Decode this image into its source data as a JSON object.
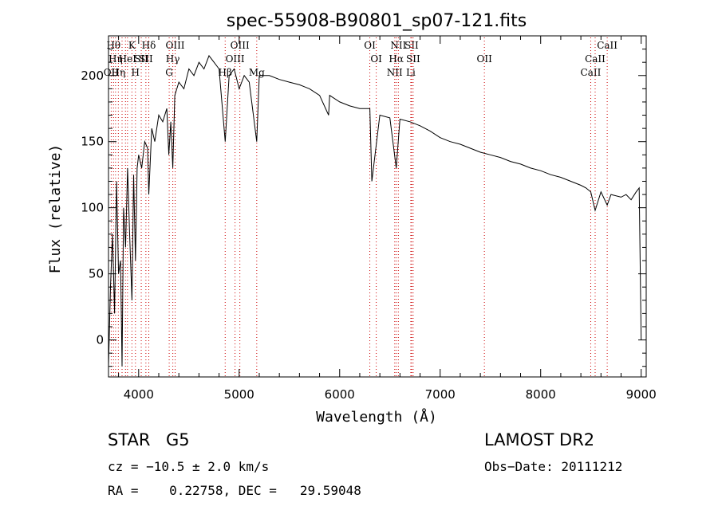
{
  "chart_data": {
    "type": "line",
    "title": "spec-55908-B90801_sp07-121.fits",
    "xlabel": "Wavelength (Å)",
    "ylabel": "Flux (relative)",
    "xlim": [
      3700,
      9050
    ],
    "ylim": [
      -28,
      230
    ],
    "xticks": [
      4000,
      5000,
      6000,
      7000,
      8000,
      9000
    ],
    "yticks": [
      0,
      50,
      100,
      150,
      200
    ],
    "grid": false,
    "line_color": "#000000",
    "marker_line_color": "#cc0000",
    "series": [
      {
        "x": [
          3700,
          3720,
          3740,
          3760,
          3780,
          3800,
          3820,
          3835,
          3850,
          3870,
          3890,
          3910,
          3933,
          3950,
          3968,
          3985,
          4000,
          4030,
          4060,
          4090,
          4101,
          4130,
          4160,
          4200,
          4240,
          4280,
          4300,
          4320,
          4340,
          4360,
          4400,
          4450,
          4500,
          4550,
          4600,
          4650,
          4700,
          4750,
          4800,
          4861,
          4900,
          4950,
          5000,
          5050,
          5100,
          5175,
          5200,
          5300,
          5400,
          5500,
          5600,
          5700,
          5800,
          5890,
          5900,
          6000,
          6100,
          6200,
          6300,
          6320,
          6400,
          6500,
          6563,
          6600,
          6700,
          6800,
          6900,
          7000,
          7100,
          7200,
          7300,
          7400,
          7500,
          7600,
          7700,
          7800,
          7900,
          8000,
          8100,
          8200,
          8300,
          8400,
          8450,
          8498,
          8542,
          8600,
          8662,
          8700,
          8800,
          8850,
          8900,
          8950,
          8980,
          9000
        ],
        "y": [
          -20,
          40,
          80,
          20,
          120,
          50,
          60,
          -20,
          100,
          70,
          130,
          80,
          30,
          125,
          60,
          130,
          140,
          130,
          150,
          145,
          110,
          160,
          150,
          170,
          165,
          175,
          140,
          165,
          130,
          185,
          195,
          190,
          205,
          200,
          210,
          205,
          215,
          210,
          205,
          150,
          200,
          205,
          190,
          200,
          195,
          150,
          200,
          200,
          197,
          195,
          193,
          190,
          185,
          170,
          185,
          180,
          177,
          175,
          175,
          120,
          170,
          168,
          130,
          167,
          165,
          162,
          158,
          153,
          150,
          148,
          145,
          142,
          140,
          138,
          135,
          133,
          130,
          128,
          125,
          123,
          120,
          117,
          115,
          112,
          98,
          112,
          102,
          110,
          108,
          110,
          106,
          112,
          115,
          0
        ]
      }
    ],
    "lines": [
      {
        "w": 3727,
        "row": 2,
        "label": "OII"
      },
      {
        "w": 3750,
        "row": 0,
        "label": "Hθ"
      },
      {
        "w": 3770,
        "row": 1,
        "label": "Hη"
      },
      {
        "w": 3798,
        "row": 2,
        "label": "Hη"
      },
      {
        "w": 3835,
        "row": 0,
        "label": ""
      },
      {
        "w": 3869,
        "row": 0,
        "label": ""
      },
      {
        "w": 3889,
        "row": 1,
        "label": "HeI"
      },
      {
        "w": 3933,
        "row": 0,
        "label": "K"
      },
      {
        "w": 3968,
        "row": 2,
        "label": "H"
      },
      {
        "w": 4026,
        "row": 1,
        "label": "SII"
      },
      {
        "w": 4072,
        "row": 1,
        "label": "SII"
      },
      {
        "w": 4101,
        "row": 0,
        "label": "Hδ"
      },
      {
        "w": 4304,
        "row": 2,
        "label": "G"
      },
      {
        "w": 4340,
        "row": 1,
        "label": "Hγ"
      },
      {
        "w": 4363,
        "row": 0,
        "label": "OIII"
      },
      {
        "w": 4861,
        "row": 2,
        "label": "Hβ"
      },
      {
        "w": 4959,
        "row": 1,
        "label": "OIII"
      },
      {
        "w": 5007,
        "row": 0,
        "label": "OIII"
      },
      {
        "w": 5175,
        "row": 2,
        "label": "Mg"
      },
      {
        "w": 6300,
        "row": 0,
        "label": "OI"
      },
      {
        "w": 6364,
        "row": 1,
        "label": "OI"
      },
      {
        "w": 6548,
        "row": 2,
        "label": "NII"
      },
      {
        "w": 6563,
        "row": 1,
        "label": "Hα"
      },
      {
        "w": 6584,
        "row": 0,
        "label": "NII"
      },
      {
        "w": 6708,
        "row": 2,
        "label": "Li"
      },
      {
        "w": 6716,
        "row": 0,
        "label": "SII"
      },
      {
        "w": 6731,
        "row": 1,
        "label": "SII"
      },
      {
        "w": 7440,
        "row": 1,
        "label": "OII"
      },
      {
        "w": 8498,
        "row": 2,
        "label": "CaII"
      },
      {
        "w": 8542,
        "row": 1,
        "label": "CaII"
      },
      {
        "w": 8662,
        "row": 0,
        "label": "CaII"
      }
    ]
  },
  "footer": {
    "object_type": "STAR",
    "subclass": "G5",
    "survey": "LAMOST DR2",
    "cz": "cz = −10.5 ± 2.0 km/s",
    "obs_date": "Obs−Date: 20111212",
    "coords": "RA =    0.22758, DEC =   29.59048"
  }
}
